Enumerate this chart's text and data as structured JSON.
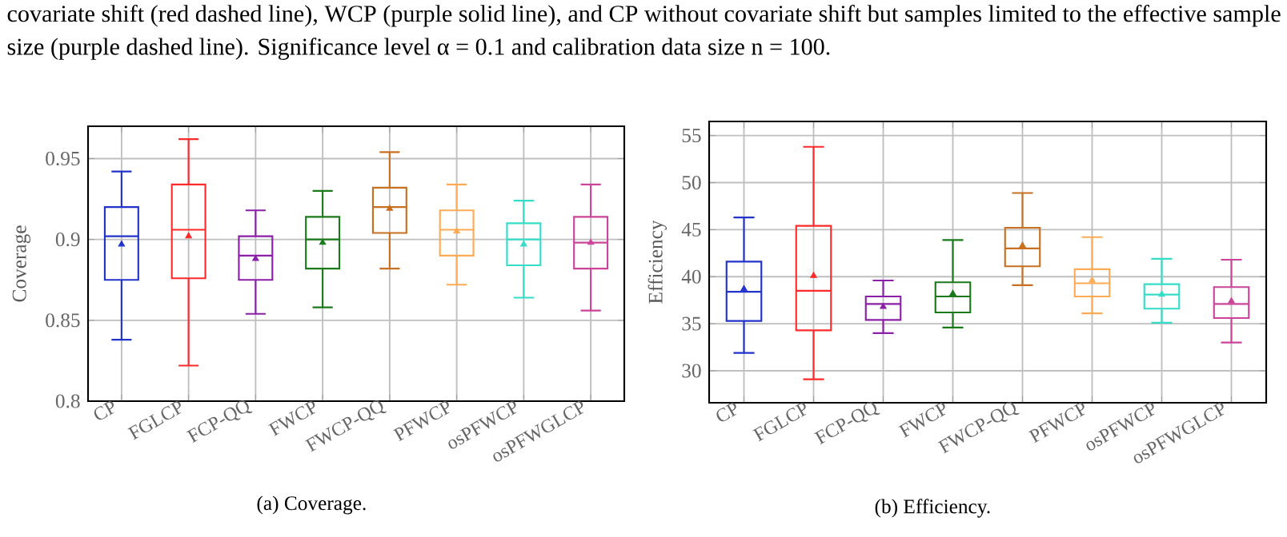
{
  "chart_data": [
    {
      "type": "box",
      "categories": [
        "CP",
        "FGLCP",
        "FCP-QQ",
        "FWCP",
        "FWCP-QQ",
        "PFWCP",
        "osPFWCP",
        "osPFWGLCP"
      ],
      "boxes": [
        {
          "low": 0.838,
          "q1": 0.875,
          "median": 0.902,
          "q3": 0.92,
          "high": 0.942,
          "mean": 0.897
        },
        {
          "low": 0.822,
          "q1": 0.876,
          "median": 0.906,
          "q3": 0.934,
          "high": 0.962,
          "mean": 0.902
        },
        {
          "low": 0.854,
          "q1": 0.875,
          "median": 0.89,
          "q3": 0.902,
          "high": 0.918,
          "mean": 0.888
        },
        {
          "low": 0.858,
          "q1": 0.882,
          "median": 0.9,
          "q3": 0.914,
          "high": 0.93,
          "mean": 0.898
        },
        {
          "low": 0.882,
          "q1": 0.904,
          "median": 0.92,
          "q3": 0.932,
          "high": 0.954,
          "mean": 0.919
        },
        {
          "low": 0.872,
          "q1": 0.89,
          "median": 0.906,
          "q3": 0.918,
          "high": 0.934,
          "mean": 0.905
        },
        {
          "low": 0.864,
          "q1": 0.884,
          "median": 0.9,
          "q3": 0.91,
          "high": 0.924,
          "mean": 0.897
        },
        {
          "low": 0.856,
          "q1": 0.882,
          "median": 0.898,
          "q3": 0.914,
          "high": 0.934,
          "mean": 0.898
        }
      ],
      "colors": [
        "#2233cc",
        "#ff2a2a",
        "#8b1fa8",
        "#1a7a1a",
        "#c87020",
        "#ffaa55",
        "#33ddc8",
        "#cc4499"
      ],
      "ylabel": "Coverage",
      "ylim": [
        0.8,
        0.97
      ],
      "yticks": [
        0.8,
        0.85,
        0.9,
        0.95
      ],
      "grid": true,
      "annotations": [
        "covariate shift (red dashed line), WCP (purple solid line), and CP without covariate shift but samples limited to the effective sample size (purple dashed line). Significance level α = 0.1 and calibration data size n = 100.",
        "(a) Coverage."
      ]
    },
    {
      "type": "box",
      "categories": [
        "CP",
        "FGLCP",
        "FCP-QQ",
        "FWCP",
        "FWCP-QQ",
        "PFWCP",
        "osPFWCP",
        "osPFWGLCP"
      ],
      "boxes": [
        {
          "low": 31.9,
          "q1": 35.3,
          "median": 38.4,
          "q3": 41.6,
          "high": 46.3,
          "mean": 38.7
        },
        {
          "low": 29.1,
          "q1": 34.3,
          "median": 38.5,
          "q3": 45.4,
          "high": 53.8,
          "mean": 40.1
        },
        {
          "low": 34.0,
          "q1": 35.4,
          "median": 37.1,
          "q3": 37.9,
          "high": 39.6,
          "mean": 36.8
        },
        {
          "low": 34.6,
          "q1": 36.2,
          "median": 37.9,
          "q3": 39.4,
          "high": 43.9,
          "mean": 38.2
        },
        {
          "low": 39.1,
          "q1": 41.1,
          "median": 43.0,
          "q3": 45.2,
          "high": 48.9,
          "mean": 43.3
        },
        {
          "low": 36.1,
          "q1": 37.9,
          "median": 39.3,
          "q3": 40.8,
          "high": 44.2,
          "mean": 39.6
        },
        {
          "low": 35.1,
          "q1": 36.6,
          "median": 38.1,
          "q3": 39.2,
          "high": 41.9,
          "mean": 38.1
        },
        {
          "low": 33.0,
          "q1": 35.6,
          "median": 37.1,
          "q3": 38.9,
          "high": 41.8,
          "mean": 37.4
        }
      ],
      "colors": [
        "#2233cc",
        "#ff2a2a",
        "#8b1fa8",
        "#1a7a1a",
        "#c87020",
        "#ffaa55",
        "#33ddc8",
        "#cc4499"
      ],
      "ylabel": "Efficiency",
      "ylim": [
        26.6,
        56.5
      ],
      "yticks": [
        30,
        35,
        40,
        45,
        50,
        55
      ],
      "grid": true,
      "annotations": [
        "(b) Efficiency."
      ]
    }
  ]
}
